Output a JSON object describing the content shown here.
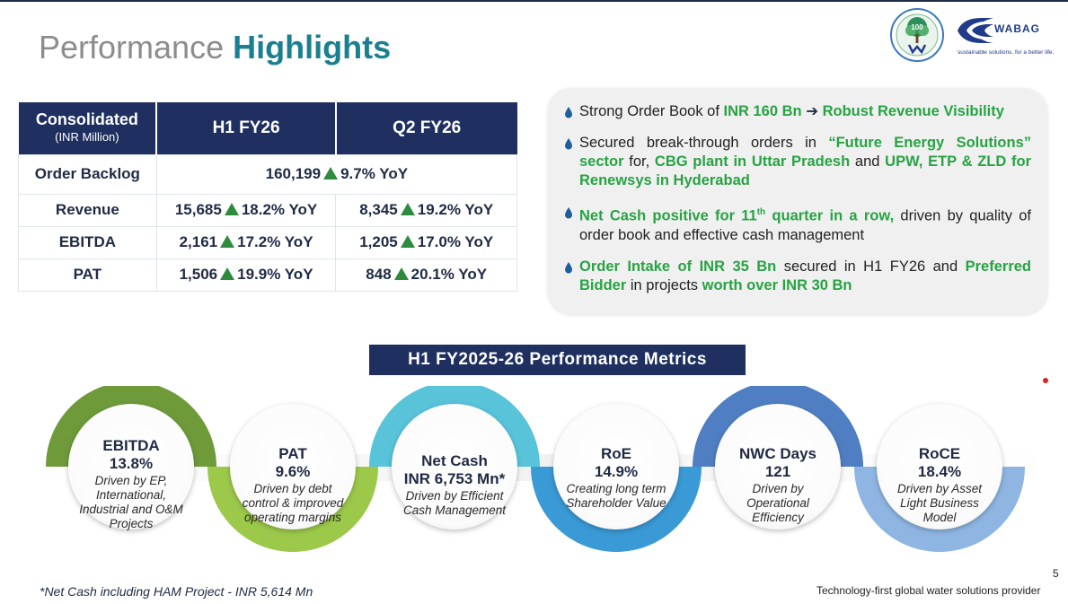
{
  "header": {
    "title_light": "Performance",
    "title_bold": "Highlights",
    "logo_seal_text": "100",
    "logo_brand": "WABAG",
    "logo_tagline": "sustainable solutions. for a better life."
  },
  "kpi_table": {
    "head": {
      "c0_main": "Consolidated",
      "c0_sub": "(INR Million)",
      "c1": "H1 FY26",
      "c2": "Q2 FY26"
    },
    "backlog": {
      "label": "Order Backlog",
      "value": "160,199",
      "growth": "9.7% YoY"
    },
    "rows": [
      {
        "label": "Revenue",
        "h1_value": "15,685",
        "h1_growth": "18.2% YoY",
        "q2_value": "8,345",
        "q2_growth": "19.2% YoY"
      },
      {
        "label": "EBITDA",
        "h1_value": "2,161",
        "h1_growth": "17.2% YoY",
        "q2_value": "1,205",
        "q2_growth": "17.0% YoY"
      },
      {
        "label": "PAT",
        "h1_value": "1,506",
        "h1_growth": "19.9% YoY",
        "q2_value": "848",
        "q2_growth": "20.1% YoY"
      }
    ]
  },
  "highlights": {
    "b1": {
      "t1": "Strong Order Book of ",
      "g1": "INR 160 Bn",
      "arrow": " ➔ ",
      "g2": "Robust Revenue Visibility"
    },
    "b2": {
      "t1": "Secured break-through orders in ",
      "g1": "“Future Energy Solutions” sector",
      "t2": " for, ",
      "g2": "CBG plant in Uttar Pradesh",
      "t3": " and ",
      "g3": "UPW,  ETP & ZLD for Renewsys in Hyderabad"
    },
    "b3": {
      "g1": "Net Cash positive for 11",
      "sup": "th",
      "g2": " quarter in a row,",
      "t1": " driven by quality of order book and effective cash management"
    },
    "b4": {
      "g1": "Order Intake of INR 35 Bn",
      "t1": " secured in H1 FY26 and ",
      "g2": "Preferred Bidder",
      "t2": " in projects ",
      "g3": "worth over INR 30 Bn"
    }
  },
  "metrics": {
    "heading": "H1 FY2025-26 Performance Metrics",
    "items": [
      {
        "name": "EBITDA",
        "value": "13.8%",
        "desc": "Driven by EP, International, Industrial and O&M Projects",
        "color": "#6e9a3a"
      },
      {
        "name": "PAT",
        "value": "9.6%",
        "desc": "Driven by debt control & improved operating margins",
        "color": "#9cc94a"
      },
      {
        "name": "Net Cash",
        "value": "INR 6,753 Mn*",
        "desc": "Driven by Efficient Cash Management",
        "color": "#58c3d9"
      },
      {
        "name": "RoE",
        "value": "14.9%",
        "desc": "Creating long term Shareholder Value",
        "color": "#3a9ad6"
      },
      {
        "name": "NWC Days",
        "value": "121",
        "desc": "Driven by Operational Efficiency",
        "color": "#4f7ec2"
      },
      {
        "name": "RoCE",
        "value": "18.4%",
        "desc": "Driven by Asset Light Business Model",
        "color": "#8fb6e3"
      }
    ]
  },
  "footer": {
    "footnote": "*Net Cash including HAM Project - INR 5,614 Mn",
    "tagline": "Technology-first global water solutions provider",
    "page": "5"
  }
}
